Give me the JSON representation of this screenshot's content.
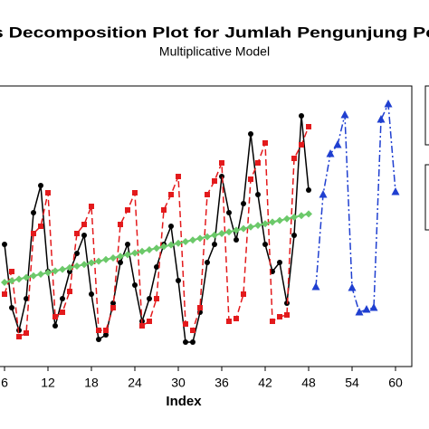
{
  "chart_data": {
    "type": "line",
    "title": "s Decomposition Plot for Jumlah Pengunjung Pe",
    "subtitle": "Multiplicative Model",
    "x_label": "Index",
    "xlim": [
      5.375,
      62.25
    ],
    "xticks": [
      6,
      12,
      18,
      24,
      30,
      36,
      42,
      48,
      54,
      60
    ],
    "ylim": [
      0,
      310
    ],
    "series": [
      {
        "color": "#000000",
        "marker": "circle",
        "dash": "solid",
        "x": [
          6,
          7,
          8,
          9,
          10,
          11,
          12,
          13,
          14,
          15,
          16,
          17,
          18,
          19,
          20,
          21,
          22,
          23,
          24,
          25,
          26,
          27,
          28,
          29,
          30,
          31,
          32,
          33,
          34,
          35,
          36,
          37,
          38,
          39,
          40,
          41,
          42,
          43,
          44,
          45,
          46,
          47,
          48
        ],
        "values": [
          135,
          65,
          40,
          75,
          170,
          200,
          105,
          45,
          75,
          105,
          125,
          145,
          80,
          30,
          35,
          70,
          115,
          135,
          90,
          50,
          75,
          110,
          135,
          155,
          95,
          27,
          27,
          60,
          115,
          135,
          210,
          170,
          140,
          180,
          257,
          190,
          135,
          105,
          115,
          70,
          145,
          277,
          195
        ]
      },
      {
        "color": "#e31a1c",
        "marker": "square",
        "dash": "dashed",
        "x": [
          6,
          7,
          8,
          9,
          10,
          11,
          12,
          13,
          14,
          15,
          16,
          17,
          18,
          19,
          20,
          21,
          22,
          23,
          24,
          25,
          26,
          27,
          28,
          29,
          30,
          31,
          32,
          33,
          34,
          35,
          36,
          37,
          38,
          39,
          40,
          41,
          42,
          43,
          44,
          45,
          46,
          47,
          48
        ],
        "values": [
          80,
          105,
          33,
          37,
          147,
          155,
          192,
          55,
          60,
          83,
          147,
          157,
          177,
          40,
          40,
          65,
          157,
          173,
          192,
          45,
          50,
          75,
          173,
          190,
          210,
          47,
          40,
          65,
          190,
          205,
          225,
          50,
          53,
          80,
          207,
          225,
          247,
          50,
          55,
          57,
          230,
          245,
          265
        ]
      },
      {
        "color": "#6cc96a",
        "marker": "diamond",
        "dash": "solid",
        "x": [
          6,
          7,
          8,
          9,
          10,
          11,
          12,
          13,
          14,
          15,
          16,
          17,
          18,
          19,
          20,
          21,
          22,
          23,
          24,
          25,
          26,
          27,
          28,
          29,
          30,
          31,
          32,
          33,
          34,
          35,
          36,
          37,
          38,
          39,
          40,
          41,
          42,
          43,
          44,
          45,
          46,
          47,
          48
        ],
        "values": [
          93,
          94.8,
          96.6,
          98.4,
          100.2,
          102,
          103.8,
          105.6,
          107.4,
          109.2,
          111,
          112.8,
          114.6,
          116.4,
          118.2,
          120,
          121.8,
          123.6,
          125.4,
          127.2,
          129,
          130.8,
          132.6,
          134.4,
          136.2,
          138,
          139.8,
          141.6,
          143.4,
          145.2,
          147,
          148.8,
          150.6,
          152.4,
          154.2,
          156,
          157.8,
          159.6,
          161.4,
          163.2,
          165,
          166.8,
          168.6
        ]
      },
      {
        "color": "#1f3fd0",
        "marker": "triangle",
        "dash": "dashdot",
        "x": [
          49,
          50,
          51,
          52,
          53,
          54,
          55,
          56,
          57,
          58,
          59,
          60
        ],
        "values": [
          88,
          190,
          235,
          245,
          278,
          87,
          60,
          63,
          65,
          273,
          290,
          193
        ]
      }
    ]
  }
}
